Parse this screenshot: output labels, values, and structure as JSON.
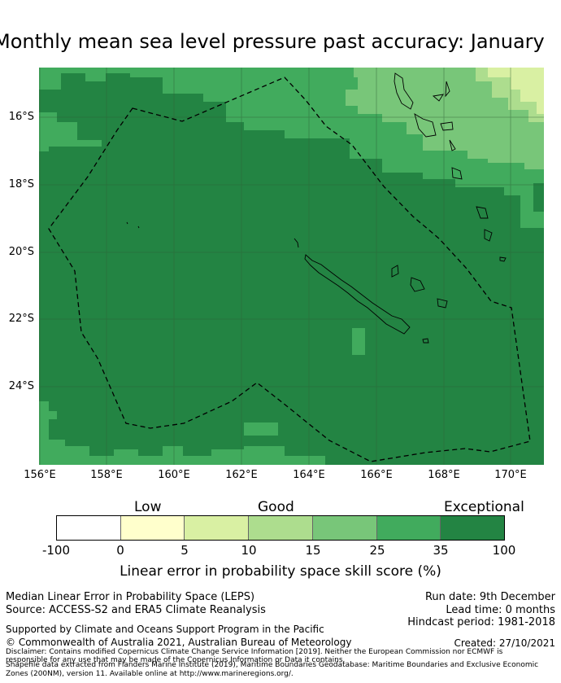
{
  "title": "Monthly mean sea level pressure past accuracy: January",
  "map": {
    "lat_labels": [
      "16°S",
      "18°S",
      "20°S",
      "22°S",
      "24°S"
    ],
    "lon_labels": [
      "156°E",
      "158°E",
      "160°E",
      "162°E",
      "164°E",
      "166°E",
      "168°E",
      "170°E"
    ],
    "boundary_label": "Maritime boundary (EEZ)",
    "colors": {
      "c5": "#d9f0a3",
      "c10": "#addd8e",
      "c15": "#78c679",
      "c25": "#41ab5d",
      "c35": "#238443",
      "grid": "#2f5f35"
    }
  },
  "legend": {
    "categories": [
      "Low",
      "Good",
      "Exceptional"
    ],
    "ticks": [
      "-100",
      "0",
      "5",
      "10",
      "15",
      "25",
      "35",
      "100"
    ],
    "segment_colors": [
      "#ffffff",
      "#ffffcc",
      "#d9f0a3",
      "#addd8e",
      "#78c679",
      "#41ab5d",
      "#238443"
    ],
    "label": "Linear error in probability space skill score (%)"
  },
  "info": {
    "metric": "Median Linear Error in Probability Space (LEPS)",
    "source": "Source: ACCESS-S2 and ERA5 Climate Reanalysis",
    "run_date": "Run date: 9th December",
    "lead_time": "Lead time: 0 months",
    "hindcast": "Hindcast period: 1981-2018",
    "support": "Supported by Climate and Oceans Support Program in the Pacific",
    "copyright": "© Commonwealth of Australia 2021, Australian Bureau of Meteorology",
    "created": "Created: 27/10/2021",
    "disclaimer_1": "Disclaimer: Contains modified Copernicus Climate Change Service Information [2019]. Neither the European Commission nor ECMWF is",
    "disclaimer_2": "responsible for any use that may be made of the Copernicus Information or Data it contains.",
    "shapefile_1": "Shapefile data extracted from Flanders Marine Institute (2019), Maritime Boundaries Geodatabase: Maritime Boundaries and Exclusive Economic",
    "shapefile_2": "Zones (200NM), version 11. Available online at http://www.marineregions.org/."
  }
}
